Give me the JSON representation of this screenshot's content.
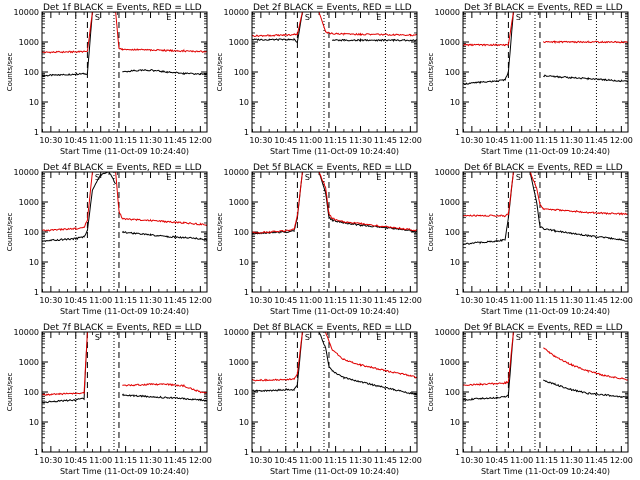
{
  "colors": {
    "events": "#000000",
    "lld": "#e00000",
    "axis": "#000000"
  },
  "axes": {
    "xlabel": "Start Time (11-Oct-09 10:24:40)",
    "ylabel": "Counts/sec",
    "xticks": [
      "10:30",
      "10:45",
      "11:00",
      "11:15",
      "11:30",
      "11:45",
      "12:00"
    ],
    "yticks": [
      "1",
      "10",
      "100",
      "1000",
      "10000"
    ],
    "x_range": [
      "10:24:40",
      "12:04"
    ],
    "ylim": [
      1,
      10000
    ],
    "yscale": "log",
    "dotted_lines": [
      "10:45",
      "11:08",
      "11:45"
    ],
    "dashed_lines": [
      "10:52",
      "11:11"
    ],
    "marker_labels": [
      {
        "text": "S",
        "time": "10:58"
      },
      {
        "text": "E",
        "time": "11:41"
      }
    ]
  },
  "chart_data": [
    {
      "type": "line",
      "title": "Det 1f BLACK = Events, RED = LLD",
      "x": [
        "10:24:40",
        "10:35",
        "10:45",
        "10:52",
        "10:55",
        "11:00",
        "11:05",
        "11:09",
        "11:11",
        "11:13",
        "11:20",
        "11:30",
        "11:40",
        "11:50",
        "12:00",
        "12:04"
      ],
      "series": [
        {
          "name": "Events",
          "values": [
            75,
            80,
            85,
            88,
            10000,
            10000,
            10000,
            10000,
            null,
            100,
            110,
            115,
            100,
            90,
            85,
            85
          ]
        },
        {
          "name": "LLD",
          "values": [
            450,
            460,
            470,
            480,
            10000,
            10000,
            10000,
            10000,
            600,
            580,
            560,
            540,
            520,
            500,
            480,
            470
          ]
        }
      ]
    },
    {
      "type": "line",
      "title": "Det 2f BLACK = Events, RED = LLD",
      "x": [
        "10:24:40",
        "10:35",
        "10:45",
        "10:50",
        "10:52",
        "10:55",
        "11:00",
        "11:05",
        "11:09",
        "11:11",
        "11:13",
        "11:20",
        "11:30",
        "11:40",
        "11:50",
        "12:00",
        "12:04"
      ],
      "series": [
        {
          "name": "Events",
          "values": [
            1200,
            1200,
            1200,
            1200,
            1000,
            10000,
            10000,
            10000,
            10000,
            null,
            1150,
            1150,
            1150,
            1150,
            1150,
            1150,
            1150
          ]
        },
        {
          "name": "LLD",
          "values": [
            1600,
            1650,
            1700,
            1750,
            1800,
            10000,
            10000,
            10000,
            2200,
            2000,
            1900,
            1850,
            1800,
            1800,
            1750,
            1700,
            1700
          ]
        }
      ]
    },
    {
      "type": "line",
      "title": "Det 3f BLACK = Events, RED = LLD",
      "x": [
        "10:24:40",
        "10:35",
        "10:45",
        "10:50",
        "10:52",
        "10:55",
        "11:00",
        "11:05",
        "11:09",
        "11:11",
        "11:13",
        "11:20",
        "11:30",
        "11:40",
        "11:50",
        "12:00",
        "12:04"
      ],
      "series": [
        {
          "name": "Events",
          "values": [
            40,
            45,
            50,
            55,
            100,
            10000,
            10000,
            10000,
            null,
            null,
            75,
            70,
            65,
            60,
            55,
            50,
            48
          ]
        },
        {
          "name": "LLD",
          "values": [
            800,
            800,
            800,
            800,
            800,
            10000,
            10000,
            10000,
            null,
            null,
            1000,
            1000,
            1000,
            1000,
            1000,
            1000,
            1000
          ]
        }
      ]
    },
    {
      "type": "line",
      "title": "Det 4f BLACK = Events, RED = LLD",
      "x": [
        "10:24:40",
        "10:35",
        "10:45",
        "10:50",
        "10:52",
        "10:55",
        "11:00",
        "11:05",
        "11:09",
        "11:11",
        "11:13",
        "11:20",
        "11:30",
        "11:40",
        "11:50",
        "12:00",
        "12:04"
      ],
      "series": [
        {
          "name": "Events",
          "values": [
            50,
            55,
            60,
            70,
            110,
            2500,
            8000,
            10000,
            4000,
            null,
            100,
            90,
            80,
            70,
            65,
            60,
            55
          ]
        },
        {
          "name": "LLD",
          "values": [
            110,
            120,
            130,
            140,
            250,
            10000,
            10000,
            10000,
            10000,
            500,
            280,
            260,
            240,
            220,
            200,
            180,
            170
          ]
        }
      ]
    },
    {
      "type": "line",
      "title": "Det 5f BLACK = Events, RED = LLD",
      "x": [
        "10:24:40",
        "10:35",
        "10:45",
        "10:50",
        "10:52",
        "10:55",
        "11:00",
        "11:05",
        "11:09",
        "11:11",
        "11:13",
        "11:20",
        "11:30",
        "11:40",
        "11:50",
        "12:00",
        "12:04"
      ],
      "series": [
        {
          "name": "Events",
          "values": [
            90,
            95,
            100,
            110,
            300,
            10000,
            10000,
            10000,
            2000,
            300,
            250,
            200,
            170,
            150,
            130,
            110,
            100
          ]
        },
        {
          "name": "LLD",
          "values": [
            95,
            100,
            110,
            120,
            350,
            10000,
            10000,
            10000,
            3000,
            400,
            280,
            220,
            190,
            160,
            140,
            120,
            110
          ]
        }
      ]
    },
    {
      "type": "line",
      "title": "Det 6f BLACK = Events, RED = LLD",
      "x": [
        "10:24:40",
        "10:35",
        "10:45",
        "10:50",
        "10:52",
        "10:55",
        "11:00",
        "11:05",
        "11:09",
        "11:11",
        "11:13",
        "11:20",
        "11:30",
        "11:40",
        "11:50",
        "12:00",
        "12:04"
      ],
      "series": [
        {
          "name": "Events",
          "values": [
            40,
            45,
            50,
            55,
            300,
            10000,
            10000,
            10000,
            1000,
            150,
            130,
            110,
            90,
            75,
            65,
            55,
            50
          ]
        },
        {
          "name": "LLD",
          "values": [
            350,
            350,
            350,
            350,
            400,
            10000,
            10000,
            10000,
            3000,
            800,
            600,
            550,
            500,
            450,
            420,
            400,
            400
          ]
        }
      ]
    },
    {
      "type": "line",
      "title": "Det 7f BLACK = Events, RED = LLD",
      "x": [
        "10:24:40",
        "10:35",
        "10:45",
        "10:50",
        "10:52",
        "10:55",
        "11:00",
        "11:05",
        "11:09",
        "11:11",
        "11:13",
        "11:20",
        "11:30",
        "11:40",
        "11:50",
        "12:00",
        "12:04"
      ],
      "series": [
        {
          "name": "Events",
          "values": [
            45,
            50,
            55,
            60,
            10000,
            10000,
            10000,
            10000,
            null,
            null,
            80,
            75,
            70,
            65,
            60,
            55,
            50
          ]
        },
        {
          "name": "LLD",
          "values": [
            80,
            85,
            90,
            95,
            10000,
            10000,
            10000,
            10000,
            null,
            null,
            160,
            170,
            180,
            180,
            160,
            100,
            90
          ]
        }
      ]
    },
    {
      "type": "line",
      "title": "Det 8f BLACK = Events, RED = LLD",
      "x": [
        "10:24:40",
        "10:35",
        "10:45",
        "10:50",
        "10:52",
        "10:55",
        "11:00",
        "11:05",
        "11:09",
        "11:11",
        "11:13",
        "11:20",
        "11:30",
        "11:40",
        "11:50",
        "12:00",
        "12:04"
      ],
      "series": [
        {
          "name": "Events",
          "values": [
            110,
            110,
            120,
            120,
            180,
            10000,
            10000,
            10000,
            3000,
            700,
            500,
            300,
            220,
            160,
            120,
            90,
            80
          ]
        },
        {
          "name": "LLD",
          "values": [
            250,
            250,
            260,
            270,
            400,
            10000,
            10000,
            10000,
            10000,
            5000,
            2500,
            1200,
            800,
            600,
            450,
            350,
            300
          ]
        }
      ]
    },
    {
      "type": "line",
      "title": "Det 9f BLACK = Events, RED = LLD",
      "x": [
        "10:24:40",
        "10:35",
        "10:45",
        "10:50",
        "10:52",
        "10:55",
        "11:00",
        "11:05",
        "11:09",
        "11:11",
        "11:13",
        "11:20",
        "11:30",
        "11:40",
        "11:50",
        "12:00",
        "12:04"
      ],
      "series": [
        {
          "name": "Events",
          "values": [
            55,
            60,
            65,
            70,
            80,
            10000,
            10000,
            10000,
            null,
            null,
            250,
            180,
            120,
            90,
            80,
            70,
            65
          ]
        },
        {
          "name": "LLD",
          "values": [
            170,
            180,
            190,
            200,
            220,
            10000,
            10000,
            10000,
            null,
            null,
            3000,
            1500,
            800,
            500,
            350,
            280,
            250
          ]
        }
      ]
    }
  ]
}
